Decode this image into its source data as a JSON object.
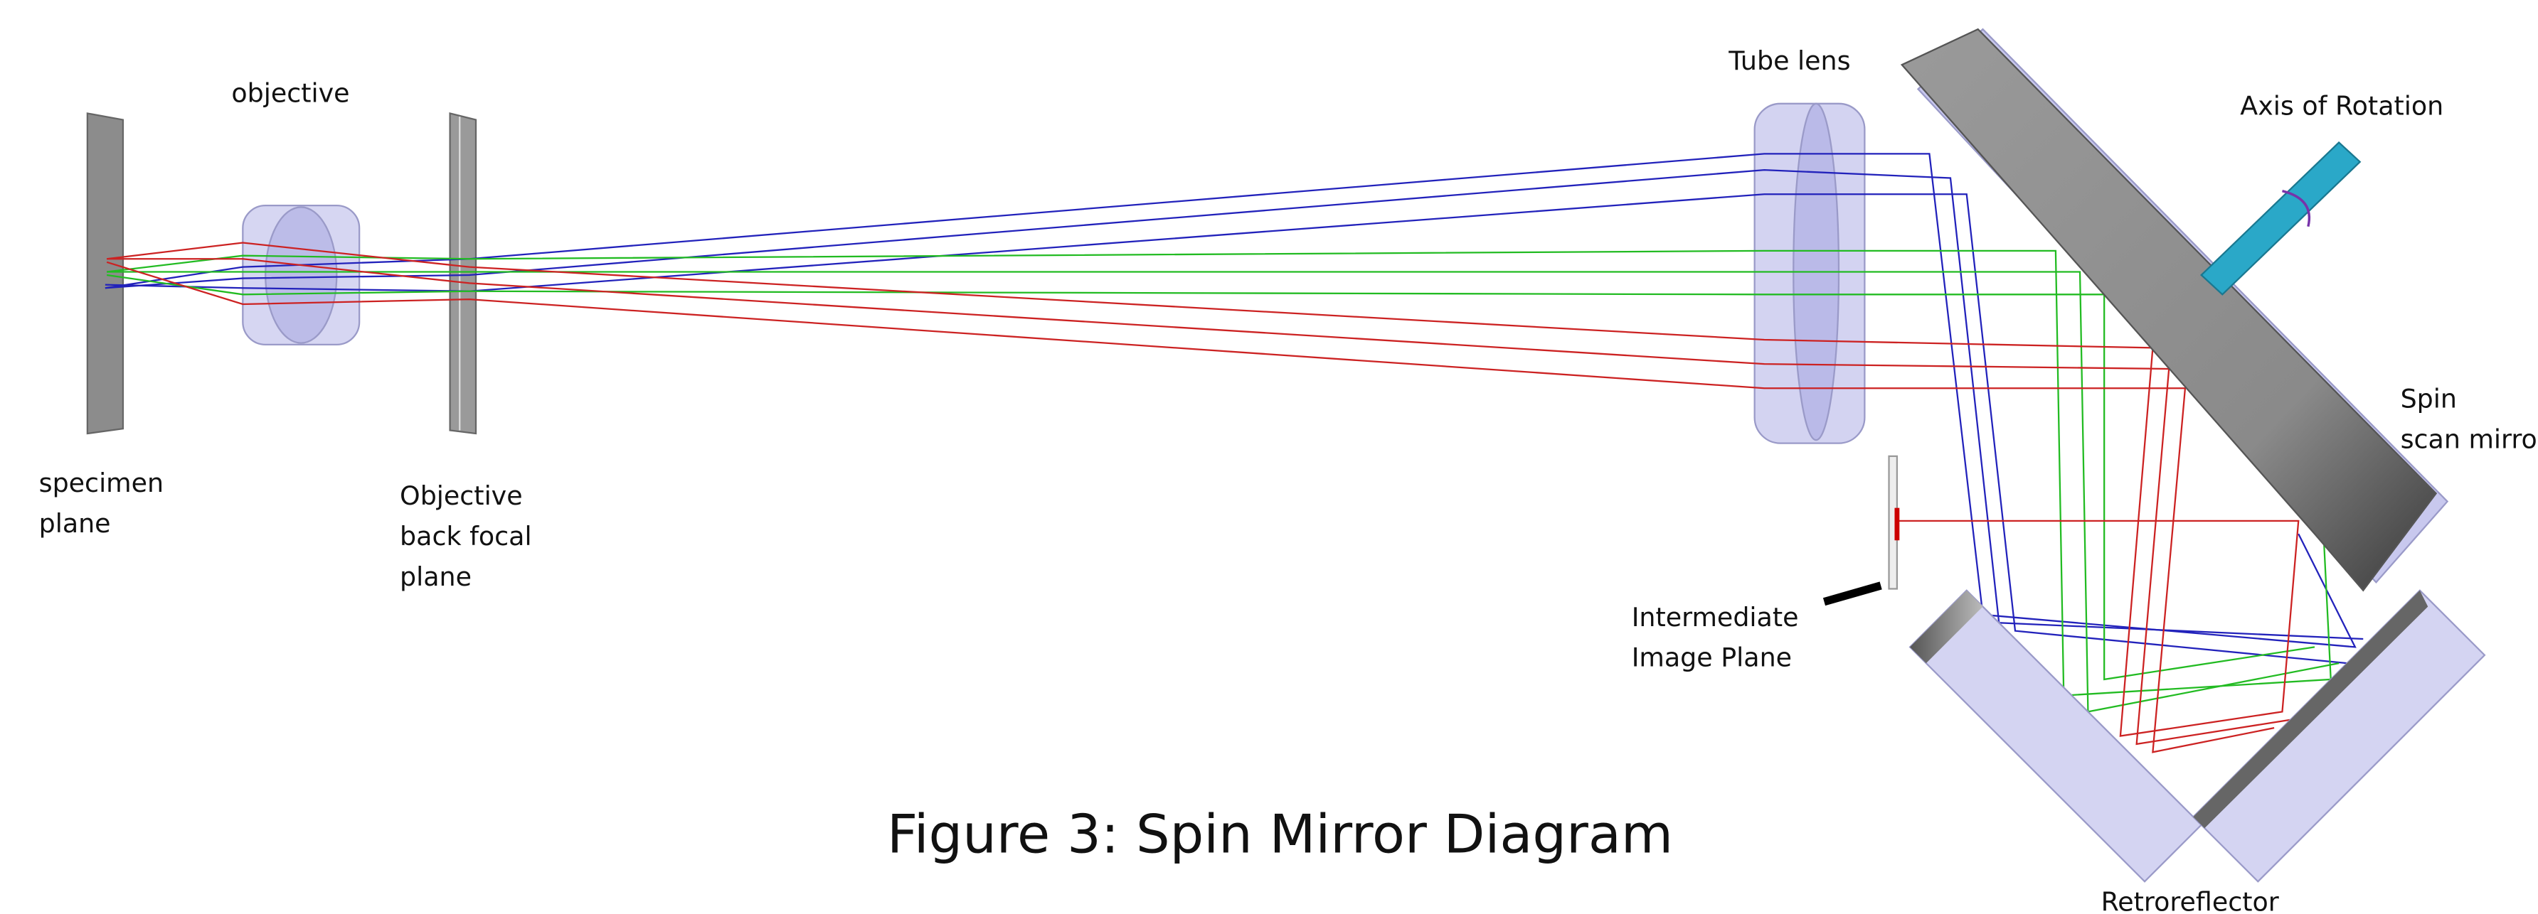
{
  "figure": {
    "caption": "Figure 3: Spin Mirror Diagram"
  },
  "labels": {
    "objective": "objective",
    "specimen_plane": [
      "specimen",
      "plane"
    ],
    "back_focal_plane": [
      "Objective",
      "back focal",
      "plane"
    ],
    "tube_lens": "Tube lens",
    "axis_of_rotation": "Axis of Rotation",
    "spin_mirror": [
      "Spin",
      "scan mirro"
    ],
    "intermediate_image_plane": [
      "Intermediate",
      "Image Plane"
    ],
    "retroreflector": "Retroreflector"
  }
}
